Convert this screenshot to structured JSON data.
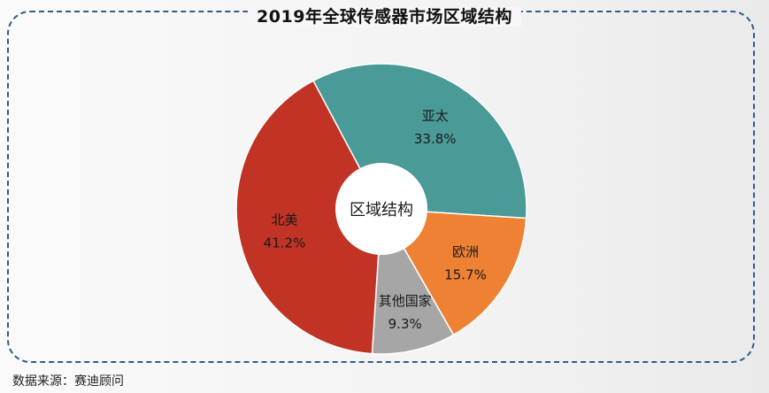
{
  "title": "2019年全球传感器市场区域结构",
  "source": "数据来源：赛迪顾问",
  "chart_data": {
    "type": "pie",
    "title": "2019年全球传感器市场区域结构",
    "center_label": "区域结构",
    "unit": "%",
    "slices": [
      {
        "label": "亚太",
        "value": 33.8,
        "value_label": "33.8%",
        "color": "#4a9a98"
      },
      {
        "label": "欧洲",
        "value": 15.7,
        "value_label": "15.7%",
        "color": "#ee8133"
      },
      {
        "label": "其他国家",
        "value": 9.3,
        "value_label": "9.3%",
        "color": "#a6a6a6"
      },
      {
        "label": "北美",
        "value": 41.2,
        "value_label": "41.2%",
        "color": "#c13325"
      }
    ],
    "start_angle_deg": -28,
    "donut": true,
    "legend": "none"
  }
}
